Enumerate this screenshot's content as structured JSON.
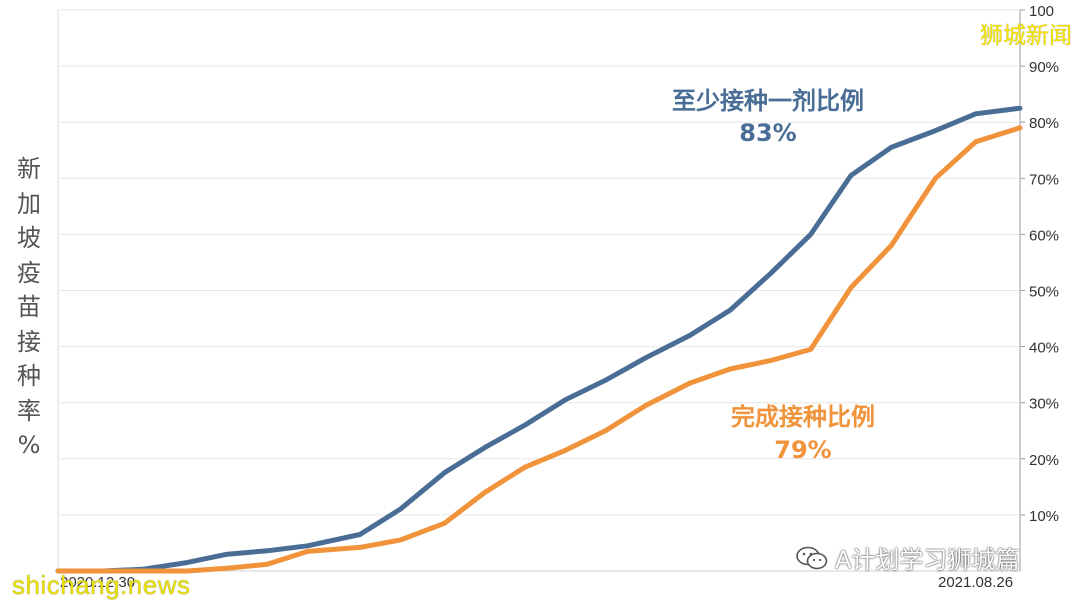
{
  "yaxis_title": [
    "新",
    "加",
    "坡",
    "疫",
    "苗",
    "接",
    "种",
    "率",
    "%"
  ],
  "watermarks": {
    "top_right": "狮城新闻",
    "bottom_left": "shichang.news",
    "wechat": "A计划学习狮城篇",
    "wechat_icon": "wechat-icon"
  },
  "colors": {
    "first_dose": "#4a6d96",
    "completed": "#f0933a",
    "grid": "#e6e6e6"
  },
  "chart_data": {
    "type": "line",
    "title": "",
    "xlabel": "",
    "ylabel": "新加坡疫苗接种率%",
    "x_tick_labels": [
      "2020.12.30",
      "2021.08.26"
    ],
    "x_range": [
      "2020-12-30",
      "2021-08-26"
    ],
    "ylim": [
      0,
      100
    ],
    "y_axis_side": "right",
    "yticks": [
      "10%",
      "20%",
      "30%",
      "40%",
      "50%",
      "60%",
      "70%",
      "80%",
      "90%",
      "100"
    ],
    "grid": true,
    "annotations": [
      {
        "series": "first_dose",
        "label": "至少接种一剂比例",
        "value": "83%"
      },
      {
        "series": "completed",
        "label": "完成接种比例",
        "value": "79%"
      }
    ],
    "x": [
      "2020-12-30",
      "2021-01-10",
      "2021-01-20",
      "2021-01-31",
      "2021-02-10",
      "2021-02-20",
      "2021-03-02",
      "2021-03-15",
      "2021-03-25",
      "2021-04-05",
      "2021-04-15",
      "2021-04-25",
      "2021-05-05",
      "2021-05-15",
      "2021-05-25",
      "2021-06-05",
      "2021-06-15",
      "2021-06-25",
      "2021-07-05",
      "2021-07-15",
      "2021-07-25",
      "2021-08-05",
      "2021-08-15",
      "2021-08-26"
    ],
    "series": [
      {
        "key": "first_dose",
        "values": [
          0,
          0,
          0.3,
          1.5,
          3.0,
          3.6,
          4.5,
          6.5,
          11,
          17.5,
          22,
          26,
          30.5,
          34,
          38,
          42,
          46.5,
          53,
          60,
          70.5,
          75.5,
          78.5,
          81.5,
          82.5
        ]
      },
      {
        "key": "completed",
        "values": [
          0,
          0,
          0,
          0,
          0.5,
          1.2,
          3.5,
          4.2,
          5.5,
          8.5,
          14,
          18.5,
          21.5,
          25,
          29.5,
          33.5,
          36,
          37.5,
          39.5,
          50.5,
          58,
          70,
          76.5,
          79
        ]
      }
    ]
  }
}
